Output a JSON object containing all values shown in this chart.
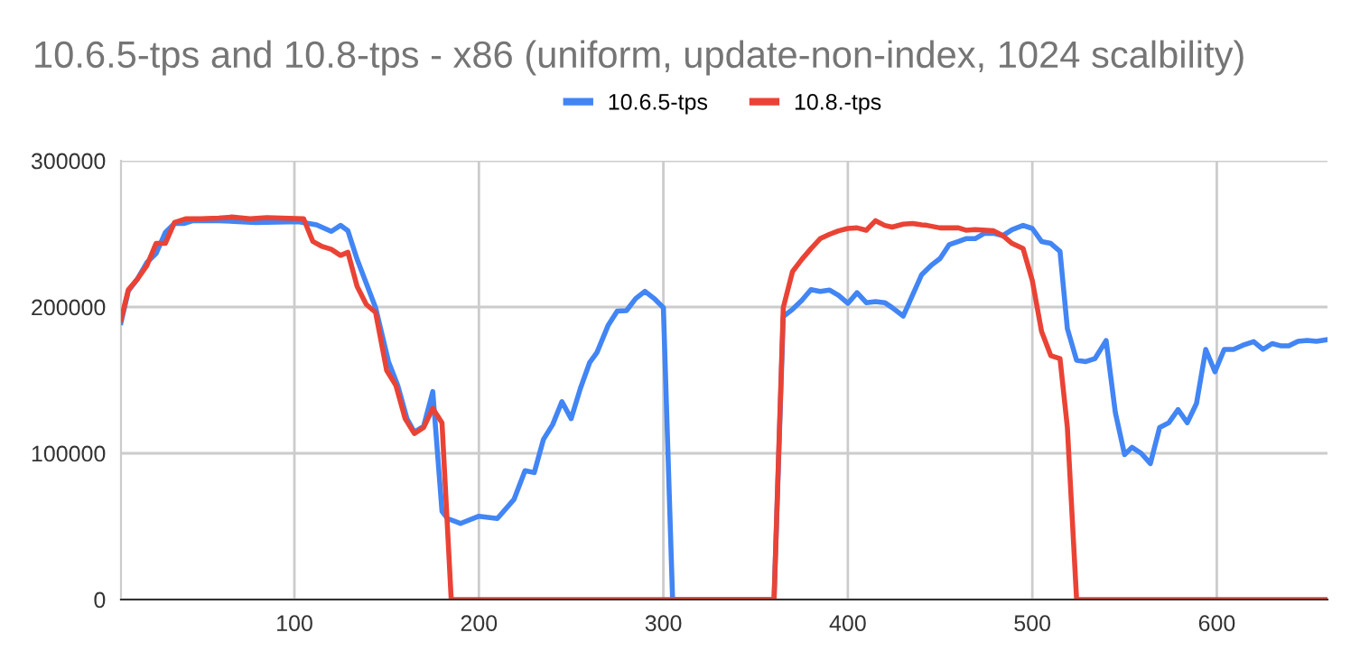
{
  "chart_data": {
    "type": "line",
    "title": "10.6.5-tps and 10.8-tps - x86 (uniform, update-non-index, 1024 scalbility)",
    "xlim": [
      6,
      660
    ],
    "xticks": [
      100,
      200,
      300,
      400,
      500,
      600
    ],
    "ylim": [
      0,
      300000
    ],
    "yticks": [
      0,
      100000,
      200000,
      300000
    ],
    "grid": true,
    "legend": "top",
    "marker": "none",
    "line_style": "solid",
    "series": [
      {
        "name": "10.6.5-tps",
        "color": "#4285f4",
        "x": [
          6,
          10,
          15,
          20,
          25,
          30,
          35,
          40,
          45,
          59,
          79,
          102,
          112,
          120,
          125,
          129,
          134,
          139,
          144,
          151,
          156,
          161,
          165,
          170,
          175,
          180,
          183,
          190,
          200,
          210,
          219,
          225,
          230,
          235,
          240,
          245,
          250,
          255,
          260,
          264,
          270,
          275,
          280,
          285,
          290,
          295,
          300,
          305,
          360,
          365,
          370,
          375,
          380,
          385,
          390,
          395,
          400,
          405,
          410,
          415,
          420,
          424,
          430,
          435,
          440,
          445,
          450,
          455,
          460,
          464,
          469,
          474,
          479,
          484,
          489,
          495,
          500,
          505,
          510,
          515,
          519,
          524,
          529,
          534,
          540,
          545,
          550,
          554,
          559,
          564,
          569,
          574,
          579,
          584,
          589,
          594,
          599,
          604,
          609,
          614,
          620,
          625,
          630,
          635,
          639,
          644,
          649,
          654,
          659
        ],
        "values": [
          189400,
          211000,
          219300,
          230400,
          236500,
          250900,
          257100,
          257100,
          259000,
          259000,
          257800,
          258300,
          256200,
          251700,
          255800,
          252100,
          232500,
          216000,
          199600,
          162700,
          146400,
          123700,
          114400,
          118400,
          142200,
          60300,
          55400,
          52000,
          57000,
          55400,
          68400,
          88100,
          86800,
          109500,
          119700,
          135300,
          123700,
          144300,
          161900,
          168900,
          187300,
          197200,
          197500,
          205800,
          210700,
          205800,
          199600,
          0,
          0,
          193500,
          198400,
          204500,
          211900,
          210700,
          211600,
          207900,
          202500,
          209800,
          203000,
          203700,
          203000,
          199600,
          193800,
          207900,
          222100,
          228300,
          233200,
          242700,
          244800,
          246700,
          246700,
          250400,
          250400,
          248800,
          252900,
          255800,
          253700,
          244800,
          243500,
          238100,
          185200,
          163600,
          162700,
          164800,
          177100,
          127900,
          99100,
          104100,
          100000,
          93000,
          117600,
          120900,
          129900,
          120900,
          134100,
          171000,
          155700,
          171000,
          171000,
          173800,
          176300,
          171000,
          175000,
          173400,
          173400,
          176600,
          177100,
          176600,
          177500
        ]
      },
      {
        "name": "10.8.-tps",
        "color": "#ea4335",
        "x": [
          6,
          10,
          15,
          20,
          25,
          30,
          35,
          41,
          49,
          59,
          66,
          76,
          85,
          105,
          110,
          115,
          120,
          125,
          129,
          134,
          139,
          144,
          150,
          155,
          160,
          165,
          170,
          175,
          180,
          185,
          360,
          365,
          370,
          375,
          380,
          385,
          390,
          395,
          400,
          405,
          410,
          415,
          420,
          424,
          430,
          435,
          440,
          443,
          450,
          460,
          464,
          469,
          479,
          484,
          489,
          495,
          500,
          505,
          510,
          515,
          519,
          524,
          660
        ],
        "values": [
          191400,
          211900,
          219300,
          228300,
          243500,
          243500,
          257800,
          260300,
          260300,
          260800,
          261500,
          260300,
          261100,
          260300,
          244800,
          241400,
          239400,
          235300,
          237400,
          214000,
          201700,
          196300,
          156600,
          146400,
          123700,
          113500,
          117600,
          130700,
          120900,
          0,
          0,
          199600,
          224200,
          232500,
          239900,
          246700,
          249700,
          252100,
          253700,
          254100,
          252500,
          259000,
          255800,
          254600,
          256600,
          257100,
          256200,
          255800,
          254100,
          254100,
          252500,
          252900,
          252100,
          248800,
          243500,
          239900,
          218100,
          183300,
          166800,
          164800,
          117600,
          0,
          0
        ]
      }
    ]
  }
}
